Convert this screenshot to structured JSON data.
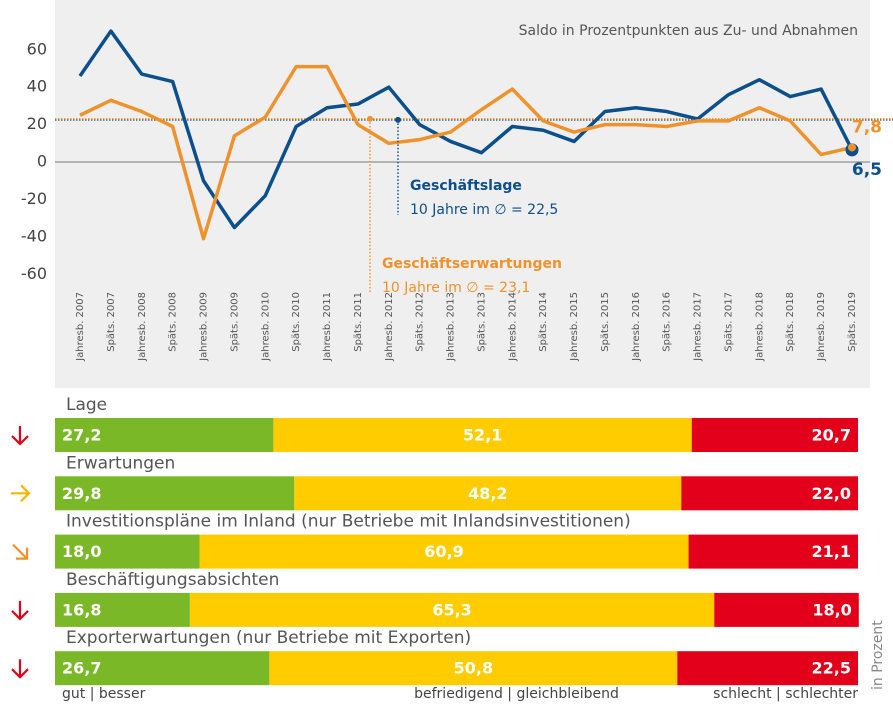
{
  "chart_data": [
    {
      "type": "line",
      "subtitle": "Saldo in Prozentpunkten aus Zu- und Abnahmen",
      "categories": [
        "Jahresb. 2007",
        "Späts. 2007",
        "Jahresb. 2008",
        "Späts. 2008",
        "Jahresb. 2009",
        "Späts. 2009",
        "Jahresb. 2010",
        "Späts. 2010",
        "Jahresb. 2011",
        "Späts. 2011",
        "Jahresb. 2012",
        "Späts. 2012",
        "Jahresb. 2013",
        "Späts. 2013",
        "Jahresb. 2014",
        "Späts. 2014",
        "Jahresb. 2015",
        "Späts. 2015",
        "Jahresb. 2016",
        "Späts. 2016",
        "Jahresb. 2017",
        "Späts. 2017",
        "Jahresb. 2018",
        "Späts. 2018",
        "Jahresb. 2019",
        "Späts. 2019"
      ],
      "series": [
        {
          "name": "Geschäftslage",
          "color": "#0b4f8c",
          "values": [
            46,
            70,
            47,
            43,
            -10,
            -35,
            -18,
            19,
            29,
            31,
            40,
            20,
            11,
            5,
            19,
            17,
            11,
            27,
            29,
            27,
            23,
            36,
            44,
            35,
            39,
            6.5
          ],
          "value_labels": [
            null,
            null,
            null,
            null,
            null,
            null,
            null,
            null,
            null,
            null,
            null,
            null,
            null,
            null,
            null,
            null,
            null,
            null,
            null,
            null,
            null,
            null,
            null,
            null,
            null,
            "6,5"
          ],
          "average": 22.5,
          "average_label": "10 Jahre im ∅ = 22,5"
        },
        {
          "name": "Geschäftserwartungen",
          "color": "#f0922b",
          "values": [
            25,
            33,
            27,
            19,
            -41,
            14,
            24,
            51,
            51,
            20,
            10,
            12,
            16,
            28,
            39,
            22,
            16,
            20,
            20,
            19,
            22,
            22,
            29,
            22,
            4,
            7.8
          ],
          "value_labels": [
            null,
            null,
            null,
            null,
            null,
            null,
            null,
            null,
            null,
            null,
            null,
            null,
            null,
            null,
            null,
            null,
            null,
            null,
            null,
            null,
            null,
            null,
            null,
            null,
            null,
            "7,8"
          ],
          "average": 23.1,
          "average_label": "10 Jahre im ∅ = 23,1"
        }
      ],
      "ylim": [
        -70,
        85
      ],
      "yticks": [
        60,
        40,
        20,
        0,
        -20,
        -40,
        -60
      ],
      "grid": false
    },
    {
      "type": "stacked-hbar",
      "categories": [
        "Lage",
        "Erwartungen",
        "Investitionspläne im Inland (nur Betriebe mit Inlandsinvestitionen)",
        "Beschäftigungsabsichten",
        "Exporterwartungen (nur Betriebe mit Exporten)"
      ],
      "trend_arrows": [
        "down",
        "right",
        "down-right",
        "down",
        "down"
      ],
      "series": [
        {
          "name": "gut | besser",
          "color": "#7ab828",
          "values": [
            27.2,
            29.8,
            18.0,
            16.8,
            26.7
          ],
          "value_labels": [
            "27,2",
            "29,8",
            "18,0",
            "16,8",
            "26,7"
          ]
        },
        {
          "name": "befriedigend | gleichbleibend",
          "color": "#ffcc00",
          "values": [
            52.1,
            48.2,
            60.9,
            65.3,
            50.8
          ],
          "value_labels": [
            "52,1",
            "48,2",
            "60,9",
            "65,3",
            "50,8"
          ]
        },
        {
          "name": "schlecht | schlechter",
          "color": "#e2001a",
          "values": [
            20.7,
            22.0,
            21.1,
            18.0,
            22.5
          ],
          "value_labels": [
            "20,7",
            "22,0",
            "21,1",
            "18,0",
            "22,5"
          ]
        }
      ],
      "xlim": [
        0,
        100
      ],
      "axis_label": "in Prozent"
    }
  ]
}
